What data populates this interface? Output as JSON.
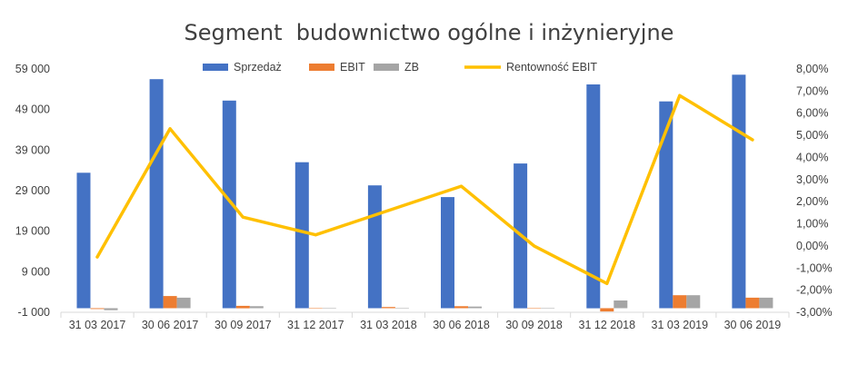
{
  "chart_data": {
    "type": "bar",
    "title": "Segment  budownictwo ogólne i inżynieryjne",
    "categories": [
      "31 03 2017",
      "30 06 2017",
      "30 09 2017",
      "31 12 2017",
      "31 03 2018",
      "30 06 2018",
      "30 09 2018",
      "31 12 2018",
      "31 03 2019",
      "30 06 2019"
    ],
    "series": [
      {
        "name": "Sprzedaż",
        "kind": "bar",
        "axis": "left",
        "color": "#4472C4",
        "values": [
          33400,
          56500,
          51200,
          36000,
          30300,
          27400,
          35700,
          55200,
          51000,
          57600
        ]
      },
      {
        "name": "EBIT",
        "kind": "bar",
        "axis": "left",
        "color": "#ED7D31",
        "values": [
          -200,
          3000,
          600,
          0,
          300,
          500,
          0,
          -800,
          3200,
          2600
        ]
      },
      {
        "name": "ZB",
        "kind": "bar",
        "axis": "left",
        "color": "#A5A5A5",
        "values": [
          -500,
          2600,
          500,
          0,
          100,
          400,
          0,
          1900,
          3200,
          2600
        ]
      },
      {
        "name": "Rentowność EBIT",
        "kind": "line",
        "axis": "right",
        "color": "#FFC000",
        "values": [
          -0.5,
          5.3,
          1.3,
          0.5,
          1.6,
          2.7,
          0.0,
          -1.7,
          6.8,
          4.8
        ]
      }
    ],
    "y_left": {
      "min": -1000,
      "max": 59000,
      "ticks": [
        "-1 000",
        "9 000",
        "19 000",
        "29 000",
        "39 000",
        "49 000",
        "59 000"
      ]
    },
    "y_right": {
      "min": -3,
      "max": 8,
      "ticks": [
        "-3,00%",
        "-2,00%",
        "-1,00%",
        "0,00%",
        "1,00%",
        "2,00%",
        "3,00%",
        "4,00%",
        "5,00%",
        "6,00%",
        "7,00%",
        "8,00%"
      ]
    },
    "legend_position": "top",
    "grid": false
  }
}
